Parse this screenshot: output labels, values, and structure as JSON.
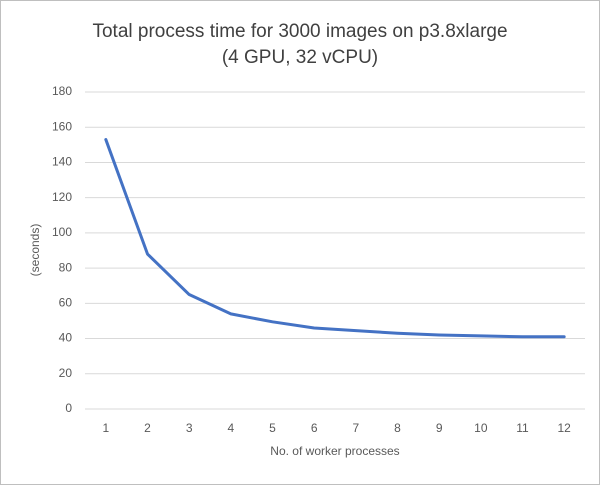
{
  "chart_data": {
    "type": "line",
    "title": "Total process time for 3000 images on p3.8xlarge",
    "subtitle": "(4 GPU, 32 vCPU)",
    "x_label": "No. of worker processes",
    "y_label": "(seconds)",
    "categories": [
      "1",
      "2",
      "3",
      "4",
      "5",
      "6",
      "7",
      "8",
      "9",
      "10",
      "11",
      "12"
    ],
    "values": [
      153,
      88,
      65,
      54,
      49.5,
      46,
      44.5,
      43,
      42,
      41.5,
      41,
      41
    ],
    "color": "#4472c4",
    "ylim": [
      0,
      180
    ],
    "yticks": [
      0,
      20,
      40,
      60,
      80,
      100,
      120,
      140,
      160,
      180
    ],
    "grid": true
  }
}
